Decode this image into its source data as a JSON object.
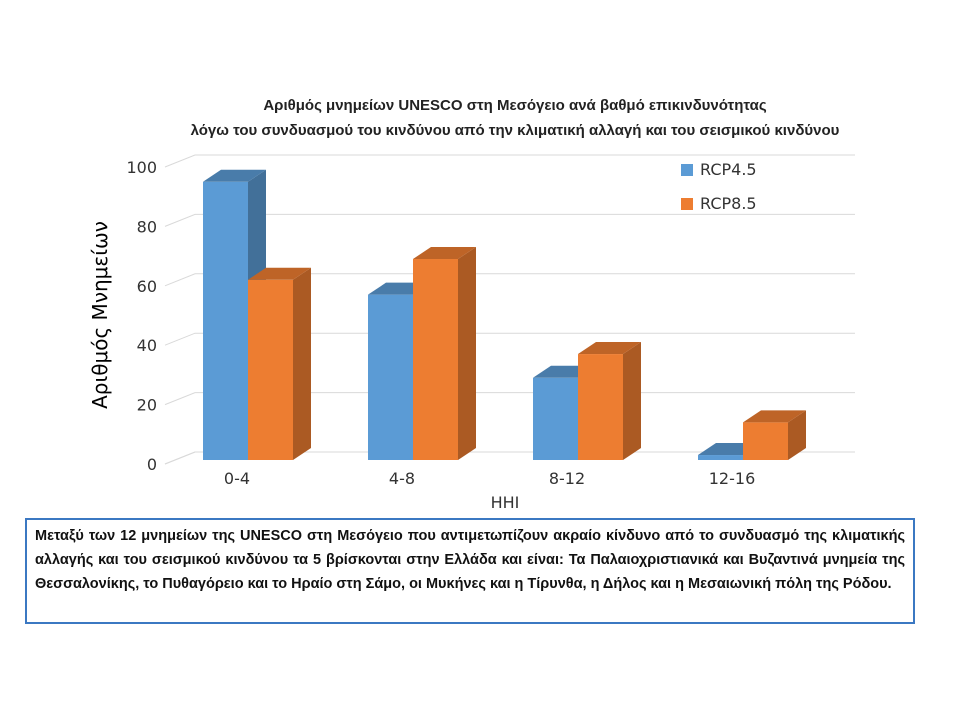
{
  "chart_data": {
    "type": "bar",
    "title_lines": [
      "Αριθμός μνημείων UNESCO στη Μεσόγειο ανά βαθμό επικινδυνότητας",
      "λόγω του συνδυασμού του κινδύνου από την κλιματική αλλαγή και του σεισμικού κινδύνου"
    ],
    "xlabel": "HHI",
    "ylabel": "Αριθμός Μνημείων",
    "categories": [
      "0-4",
      "4-8",
      "8-12",
      "12-16"
    ],
    "series": [
      {
        "name": "RCP4.5",
        "values": [
          93,
          55,
          27,
          1
        ],
        "color": "#5b9bd5"
      },
      {
        "name": "RCP8.5",
        "values": [
          60,
          67,
          35,
          12
        ],
        "color": "#ed7d31"
      }
    ],
    "ylim": [
      0,
      100
    ],
    "yticks": [
      0,
      20,
      40,
      60,
      80,
      100
    ],
    "grid": true,
    "legend": "top-right"
  },
  "note": "Μεταξύ των 12 μνημείων της UNESCO στη Μεσόγειο που αντιμετωπίζουν ακραίο κίνδυνο από το συνδυασμό της κλιματικής αλλαγής και του σεισμικού κινδύνου τα 5 βρίσκονται στην Ελλάδα και είναι: Τα Παλαιοχριστιανικά και Βυζαντινά μνημεία της Θεσσαλονίκης, το Πυθαγόρειο και το Ηραίο στη Σάμο, οι Μυκήνες και η Τίρυνθα, η Δήλος και η Μεσαιωνική πόλη της Ρόδου."
}
